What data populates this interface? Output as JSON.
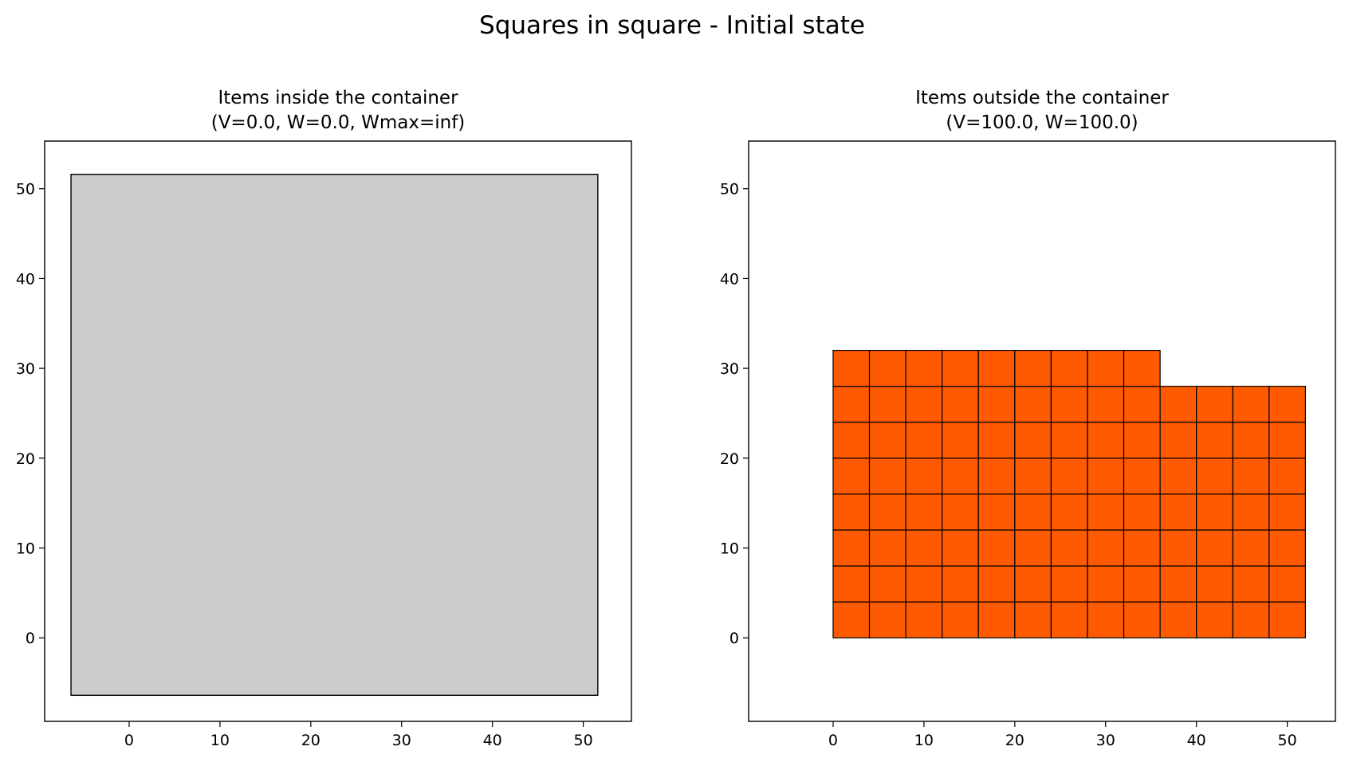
{
  "figure": {
    "suptitle": "Squares in square - Initial state"
  },
  "chart_data": [
    {
      "type": "patches",
      "title_line1": "Items inside the container",
      "title_line2": "(V=0.0, W=0.0, Wmax=inf)",
      "xlim": [
        -9.3,
        55.3
      ],
      "ylim": [
        -9.3,
        55.3
      ],
      "xticks": [
        0,
        10,
        20,
        30,
        40,
        50
      ],
      "yticks": [
        0,
        10,
        20,
        30,
        40,
        50
      ],
      "grid": false,
      "container": {
        "x": -6.4,
        "y": -6.4,
        "width": 58,
        "height": 58,
        "fill": "#cccccc",
        "edge": "#000000"
      },
      "items": []
    },
    {
      "type": "patches",
      "title_line1": "Items outside the container",
      "title_line2": "(V=100.0, W=100.0)",
      "xlim": [
        -9.3,
        55.3
      ],
      "ylim": [
        -9.3,
        55.3
      ],
      "xticks": [
        0,
        10,
        20,
        30,
        40,
        50
      ],
      "yticks": [
        0,
        10,
        20,
        30,
        40,
        50
      ],
      "grid": false,
      "item_size": 4,
      "item_fill": "#ff5a00",
      "item_edge": "#000000",
      "columns": [
        {
          "x": 0,
          "count": 8
        },
        {
          "x": 4,
          "count": 8
        },
        {
          "x": 8,
          "count": 8
        },
        {
          "x": 12,
          "count": 8
        },
        {
          "x": 16,
          "count": 8
        },
        {
          "x": 20,
          "count": 8
        },
        {
          "x": 24,
          "count": 8
        },
        {
          "x": 28,
          "count": 8
        },
        {
          "x": 32,
          "count": 8
        },
        {
          "x": 36,
          "count": 7
        },
        {
          "x": 40,
          "count": 7
        },
        {
          "x": 44,
          "count": 7
        },
        {
          "x": 48,
          "count": 7
        }
      ]
    }
  ]
}
